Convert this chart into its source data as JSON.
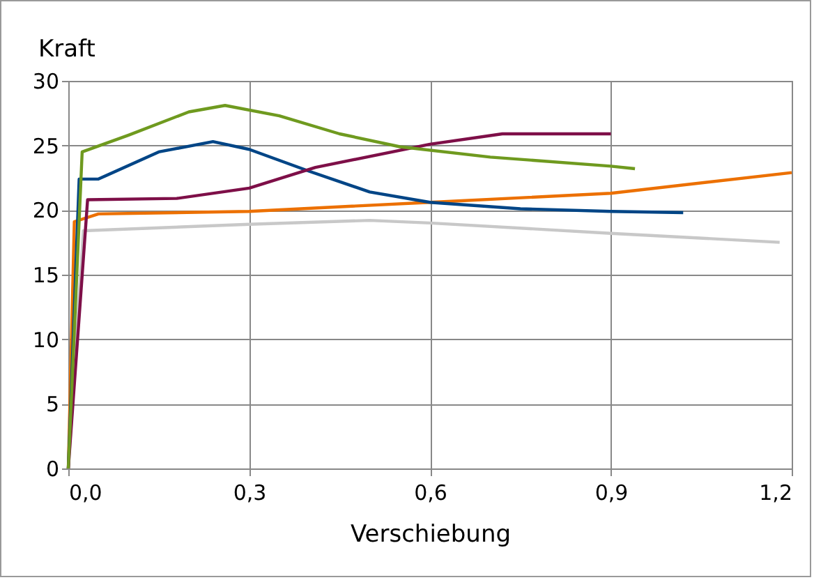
{
  "chart_data": {
    "type": "line",
    "xlabel": "Verschiebung",
    "ylabel": "Kraft",
    "xlim": [
      0,
      1.2
    ],
    "xticks": [
      {
        "value": 0,
        "label": "0,0"
      },
      {
        "value": 0.3,
        "label": "0,3"
      },
      {
        "value": 0.6,
        "label": "0,6"
      },
      {
        "value": 0.9,
        "label": "0,9"
      },
      {
        "value": 1.2,
        "label": "1,2"
      }
    ],
    "ylim": [
      0,
      30
    ],
    "yticks": [
      0,
      5,
      10,
      15,
      20,
      25,
      30
    ],
    "grid": true,
    "legend": false,
    "marker": "none",
    "line_style": "solid",
    "series": [
      {
        "color": "#c8c8c8",
        "x": [
          0,
          0.025,
          0.3,
          0.5,
          0.6,
          0.9,
          1.18
        ],
        "values": [
          0,
          18.4,
          18.9,
          19.2,
          19.0,
          18.2,
          17.5
        ]
      },
      {
        "color": "#ec7000",
        "x": [
          0,
          0.01,
          0.05,
          0.3,
          0.6,
          0.9,
          1.2
        ],
        "values": [
          0,
          19.1,
          19.7,
          19.9,
          20.6,
          21.3,
          22.9
        ]
      },
      {
        "color": "#004586",
        "x": [
          0,
          0.018,
          0.05,
          0.15,
          0.24,
          0.3,
          0.4,
          0.5,
          0.6,
          0.75,
          0.9,
          1.02
        ],
        "values": [
          0,
          22.4,
          22.4,
          24.5,
          25.3,
          24.7,
          23.0,
          21.4,
          20.6,
          20.1,
          19.9,
          19.8
        ]
      },
      {
        "color": "#7e0f48",
        "x": [
          0,
          0.032,
          0.18,
          0.3,
          0.41,
          0.6,
          0.72,
          0.9
        ],
        "values": [
          0,
          20.8,
          20.9,
          21.7,
          23.3,
          25.1,
          25.9,
          25.9
        ]
      },
      {
        "color": "#6f9a1f",
        "x": [
          0,
          0.023,
          0.1,
          0.2,
          0.26,
          0.35,
          0.45,
          0.55,
          0.7,
          0.9,
          0.94
        ],
        "values": [
          0,
          24.5,
          25.8,
          27.6,
          28.1,
          27.3,
          25.9,
          24.9,
          24.1,
          23.4,
          23.2
        ]
      }
    ]
  }
}
